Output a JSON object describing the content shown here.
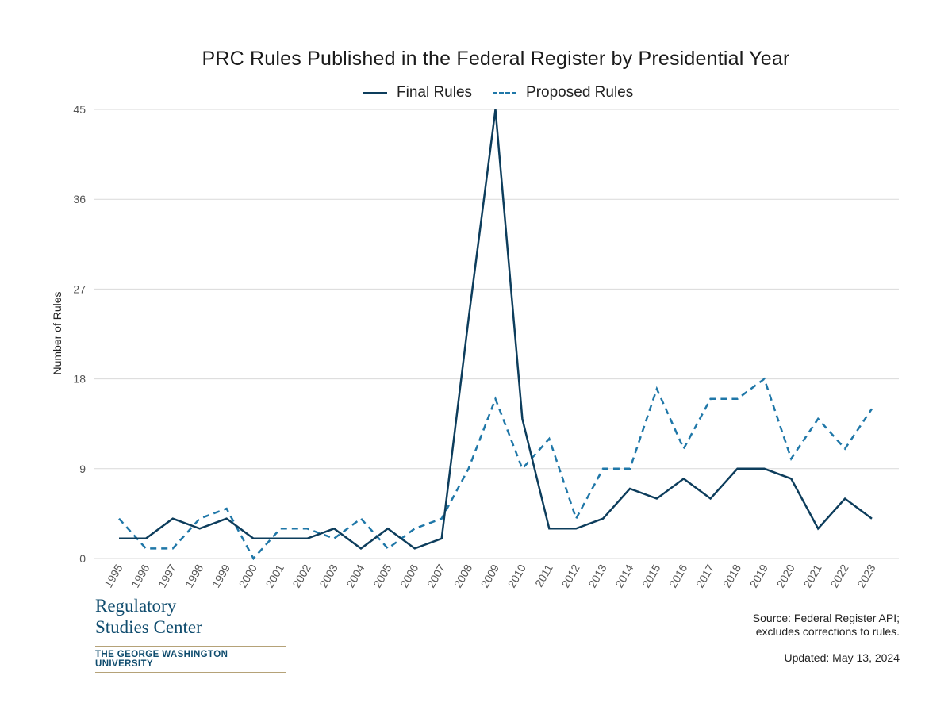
{
  "chart_data": {
    "type": "line",
    "title": "PRC Rules Published in the Federal Register by Presidential Year",
    "xlabel": "",
    "ylabel": "Number of Rules",
    "ylim": [
      0,
      45
    ],
    "yticks": [
      0,
      9,
      18,
      27,
      36,
      45
    ],
    "grid": true,
    "legend_position": "top-center",
    "x": [
      "1995",
      "1996",
      "1997",
      "1998",
      "1999",
      "2000",
      "2001",
      "2002",
      "2003",
      "2004",
      "2005",
      "2006",
      "2007",
      "2008",
      "2009",
      "2010",
      "2011",
      "2012",
      "2013",
      "2014",
      "2015",
      "2016",
      "2017",
      "2018",
      "2019",
      "2020",
      "2021",
      "2022",
      "2023"
    ],
    "series": [
      {
        "name": "Final Rules",
        "style": "solid",
        "color": "#0d3d5c",
        "values": [
          2,
          2,
          4,
          3,
          4,
          2,
          2,
          2,
          3,
          1,
          3,
          1,
          2,
          24,
          45,
          14,
          3,
          3,
          4,
          7,
          6,
          8,
          6,
          9,
          9,
          8,
          3,
          6,
          4
        ]
      },
      {
        "name": "Proposed Rules",
        "style": "dashed",
        "color": "#1f77a8",
        "values": [
          4,
          1,
          1,
          4,
          5,
          0,
          3,
          3,
          2,
          4,
          1,
          3,
          4,
          9,
          16,
          9,
          12,
          4,
          9,
          9,
          17,
          11,
          16,
          16,
          18,
          10,
          14,
          11,
          15
        ]
      }
    ]
  },
  "logo": {
    "line1": "Regulatory",
    "line2": "Studies Center",
    "university": "THE GEORGE WASHINGTON UNIVERSITY"
  },
  "source": {
    "line1": "Source: Federal Register API;",
    "line2": "excludes corrections to rules."
  },
  "updated": "Updated: May 13, 2024"
}
